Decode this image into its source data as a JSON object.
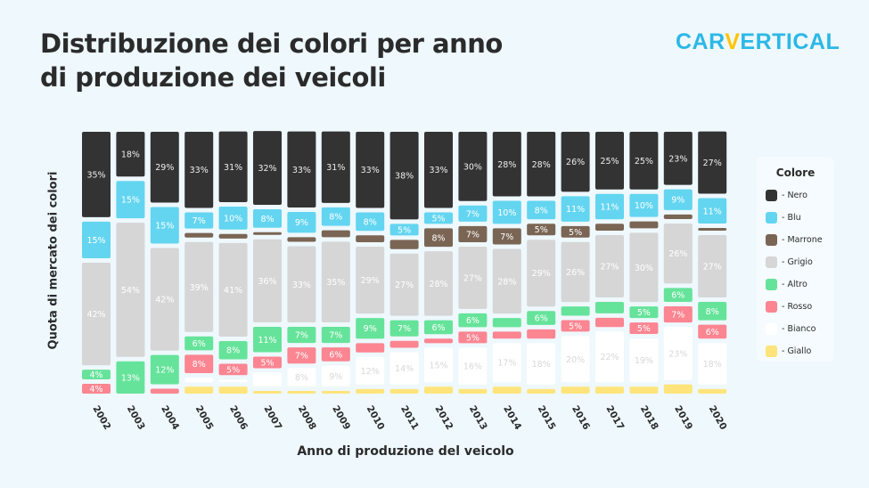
{
  "title_line1": "Distribuzione dei colori per anno",
  "title_line2": "di produzione dei veicoli",
  "logo": {
    "part1": "CAR",
    "part2": "V",
    "part3": "ERTICAL"
  },
  "chart_data": {
    "type": "bar",
    "stacked": true,
    "title": "Distribuzione dei colori per anno di produzione dei veicoli",
    "xlabel": "Anno di produzione del veicolo",
    "ylabel": "Quota di mercato dei colori",
    "ylim": [
      0,
      100
    ],
    "legend_title": "Colore",
    "legend_position": "right",
    "categories": [
      "2002",
      "2003",
      "2004",
      "2005",
      "2006",
      "2007",
      "2008",
      "2009",
      "2010",
      "2011",
      "2012",
      "2013",
      "2014",
      "2015",
      "2016",
      "2017",
      "2018",
      "2019",
      "2020"
    ],
    "series": [
      {
        "name": "- Nero",
        "color": "#333333",
        "label_color": "#eeeeee",
        "values": [
          35,
          18,
          29,
          33,
          31,
          32,
          33,
          31,
          33,
          38,
          33,
          30,
          28,
          28,
          26,
          25,
          25,
          23,
          27
        ],
        "labels": [
          "35%",
          "18%",
          "29%",
          "33%",
          "31%",
          "32%",
          "33%",
          "31%",
          "33%",
          "38%",
          "33%",
          "30%",
          "28%",
          "28%",
          "26%",
          "25%",
          "25%",
          "23%",
          "27%"
        ]
      },
      {
        "name": "- Blu",
        "color": "#63d5f0",
        "label_color": "#ffffff",
        "values": [
          15,
          15,
          15,
          7,
          10,
          8,
          9,
          8,
          8,
          5,
          5,
          7,
          10,
          8,
          11,
          11,
          10,
          9,
          11
        ],
        "labels": [
          "15%",
          "15%",
          "15%",
          "7%",
          "10%",
          "8%",
          "9%",
          "8%",
          "8%",
          "5%",
          "5%",
          "7%",
          "10%",
          "8%",
          "11%",
          "11%",
          "10%",
          "9%",
          "11%"
        ]
      },
      {
        "name": "- Marrone",
        "color": "#7a6554",
        "label_color": "#ffffff",
        "values": [
          0,
          0,
          0,
          2,
          2,
          1,
          2,
          3,
          3,
          4,
          8,
          7,
          7,
          5,
          5,
          3,
          3,
          2,
          1
        ],
        "labels": [
          "",
          "",
          "",
          "",
          "",
          "",
          "",
          "",
          "",
          "",
          "8%",
          "7%",
          "7%",
          "5%",
          "5%",
          "",
          "",
          "",
          ""
        ]
      },
      {
        "name": "- Grigio",
        "color": "#d6d6d6",
        "label_color": "#ffffff",
        "values": [
          42,
          54,
          42,
          39,
          41,
          36,
          33,
          35,
          29,
          27,
          28,
          27,
          28,
          29,
          26,
          27,
          30,
          26,
          27
        ],
        "labels": [
          "42%",
          "54%",
          "42%",
          "39%",
          "41%",
          "36%",
          "33%",
          "35%",
          "29%",
          "27%",
          "28%",
          "27%",
          "28%",
          "29%",
          "26%",
          "27%",
          "30%",
          "26%",
          "27%"
        ]
      },
      {
        "name": "- Altro",
        "color": "#66e39a",
        "label_color": "#ffffff",
        "values": [
          4,
          13,
          12,
          6,
          8,
          11,
          7,
          7,
          9,
          7,
          6,
          6,
          4,
          6,
          4,
          5,
          5,
          6,
          8
        ],
        "labels": [
          "4%",
          "13%",
          "12%",
          "6%",
          "8%",
          "11%",
          "7%",
          "7%",
          "9%",
          "7%",
          "6%",
          "6%",
          "",
          "6%",
          "",
          "",
          "5%",
          "6%",
          "8%"
        ]
      },
      {
        "name": "- Rosso",
        "color": "#fb8591",
        "label_color": "#ffffff",
        "values": [
          4,
          0,
          2,
          8,
          5,
          5,
          7,
          6,
          4,
          3,
          2,
          5,
          3,
          4,
          5,
          4,
          5,
          7,
          6
        ],
        "labels": [
          "4%",
          "",
          "",
          "8%",
          "5%",
          "5%",
          "7%",
          "6%",
          "",
          "",
          "",
          "5%",
          "",
          "",
          "5%",
          "",
          "5%",
          "7%",
          "6%"
        ]
      },
      {
        "name": "- Bianco",
        "color": "#ffffff",
        "label_color": "#d8d8d8",
        "values": [
          0,
          0,
          0,
          2,
          1,
          6,
          8,
          9,
          12,
          14,
          15,
          16,
          17,
          18,
          20,
          22,
          19,
          23,
          18
        ],
        "labels": [
          "",
          "",
          "",
          "",
          "",
          "",
          "8%",
          "9%",
          "12%",
          "14%",
          "15%",
          "16%",
          "17%",
          "18%",
          "20%",
          "22%",
          "19%",
          "23%",
          "18%"
        ]
      },
      {
        "name": "- Giallo",
        "color": "#fee47a",
        "label_color": "#ffffff",
        "values": [
          0,
          0,
          0,
          3,
          3,
          1,
          1,
          1,
          2,
          2,
          3,
          2,
          3,
          2,
          3,
          3,
          3,
          4,
          2
        ],
        "labels": [
          "",
          "",
          "",
          "",
          "",
          "",
          "",
          "",
          "",
          "",
          "",
          "",
          "",
          "",
          "",
          "",
          "",
          "",
          ""
        ]
      }
    ]
  }
}
